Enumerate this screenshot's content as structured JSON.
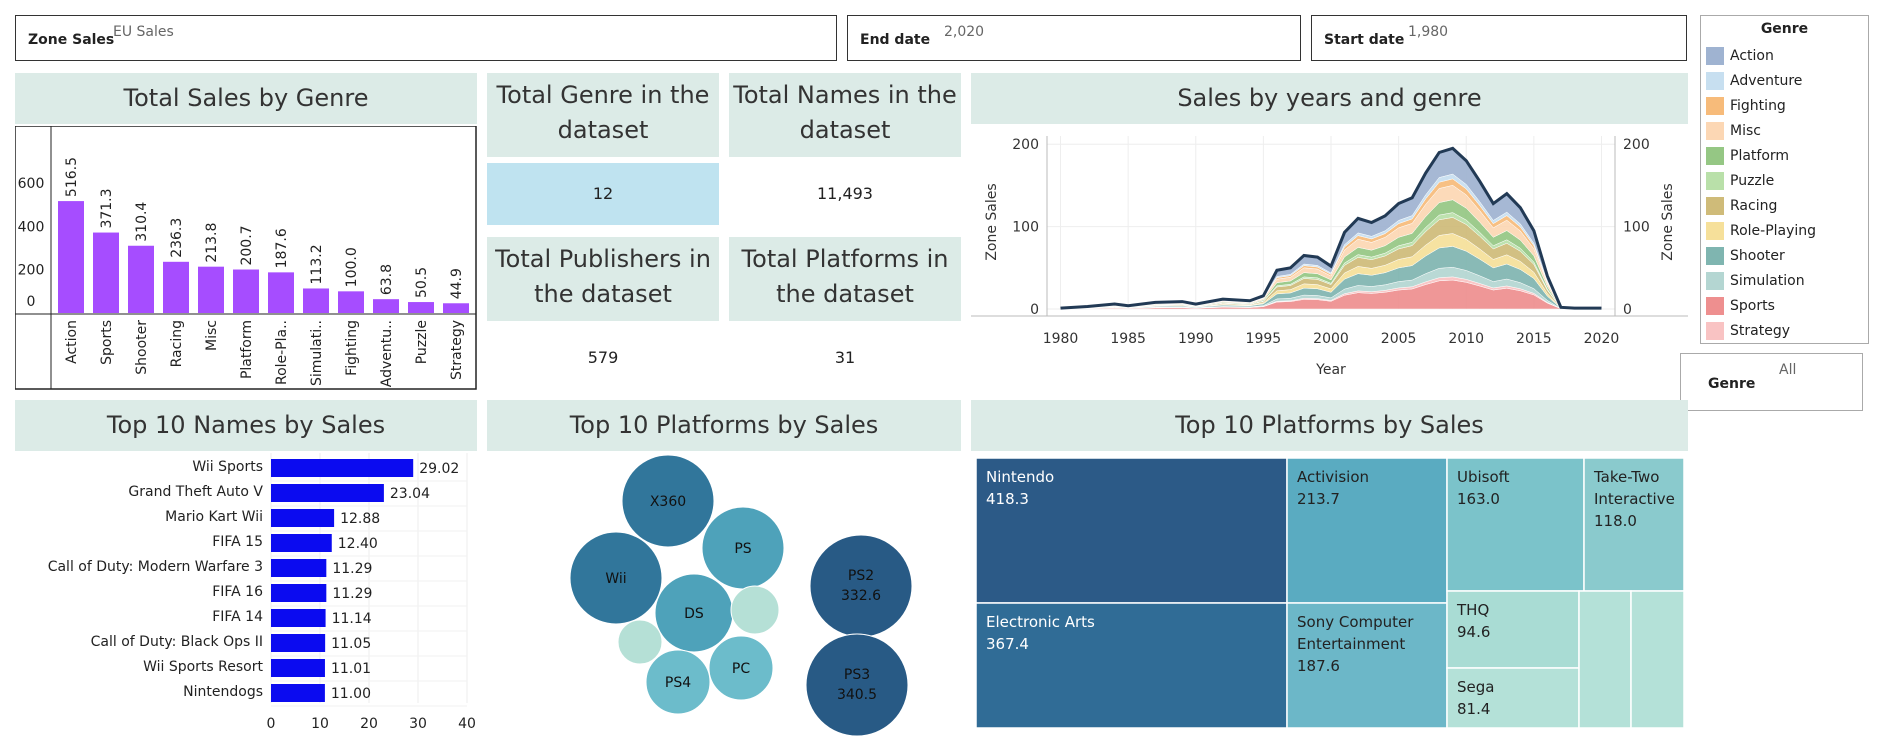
{
  "filters": {
    "zone": {
      "label": "Zone Sales",
      "value": "EU Sales"
    },
    "end": {
      "label": "End date",
      "value": "2,020"
    },
    "start": {
      "label": "Start date",
      "value": "1,980"
    },
    "genre": {
      "label": "Genre",
      "value": "All"
    }
  },
  "kpis": {
    "genre_title": "Total Genre in the dataset",
    "genre_value": "12",
    "names_title": "Total Names in the dataset",
    "names_value": "11,493",
    "publishers_title": "Total Publishers in the dataset",
    "publishers_value": "579",
    "platforms_title": "Total Platforms in the dataset",
    "platforms_value": "31"
  },
  "titles": {
    "genre_chart": "Total Sales by Genre",
    "area_chart": "Sales by years and genre",
    "names_chart": "Top 10 Names by Sales",
    "platform_bubbles": "Top 10 Platforms by Sales",
    "publisher_treemap": "Top 10 Platforms by Sales"
  },
  "legend": {
    "title": "Genre",
    "items": [
      {
        "name": "Action",
        "color": "#9fb3d1"
      },
      {
        "name": "Adventure",
        "color": "#c7dff0"
      },
      {
        "name": "Fighting",
        "color": "#f7bb7a"
      },
      {
        "name": "Misc",
        "color": "#fcd7b4"
      },
      {
        "name": "Platform",
        "color": "#95c784"
      },
      {
        "name": "Puzzle",
        "color": "#b9e0a9"
      },
      {
        "name": "Racing",
        "color": "#cfbb79"
      },
      {
        "name": "Role-Playing",
        "color": "#f6e09a"
      },
      {
        "name": "Shooter",
        "color": "#7fb5b0"
      },
      {
        "name": "Simulation",
        "color": "#b4d6d2"
      },
      {
        "name": "Sports",
        "color": "#ee8f8f"
      },
      {
        "name": "Strategy",
        "color": "#f9c3c3"
      }
    ]
  },
  "chart_data": [
    {
      "type": "bar",
      "title": "Total Sales by Genre",
      "categories": [
        "Action",
        "Sports",
        "Shooter",
        "Racing",
        "Misc",
        "Platform",
        "Role-Pla..",
        "Simulati..",
        "Fighting",
        "Adventu..",
        "Puzzle",
        "Strategy"
      ],
      "values": [
        516.5,
        371.3,
        310.4,
        236.3,
        213.8,
        200.7,
        187.6,
        113.2,
        100.0,
        63.8,
        50.5,
        44.9
      ],
      "value_labels": [
        "516.5",
        "371.3",
        "310.4",
        "236.3",
        "213.8",
        "200.7",
        "187.6",
        "113.2",
        "100.0",
        "63.8",
        "50.5",
        "44.9"
      ],
      "yticks": [
        "0",
        "200",
        "400",
        "600"
      ],
      "ylim": [
        0,
        700
      ],
      "color": "#a64dff"
    },
    {
      "type": "area",
      "title": "Sales by years and genre",
      "xlabel": "Year",
      "ylabel": "Zone Sales",
      "ylim": [
        0,
        210
      ],
      "xlim": [
        1979,
        2021
      ],
      "xticks": [
        "1980",
        "1985",
        "1990",
        "1995",
        "2000",
        "2005",
        "2010",
        "2015",
        "2020"
      ],
      "yticks": [
        "0",
        "100",
        "200"
      ],
      "x": [
        1980,
        1982,
        1984,
        1985,
        1987,
        1989,
        1990,
        1992,
        1994,
        1995,
        1996,
        1997,
        1998,
        1999,
        2000,
        2001,
        2002,
        2003,
        2004,
        2005,
        2006,
        2007,
        2008,
        2009,
        2010,
        2011,
        2012,
        2013,
        2014,
        2015,
        2016,
        2017,
        2018,
        2019,
        2020
      ],
      "total": [
        1,
        3,
        6,
        4,
        8,
        9,
        6,
        12,
        10,
        16,
        47,
        50,
        65,
        63,
        52,
        93,
        110,
        105,
        113,
        128,
        135,
        165,
        190,
        195,
        180,
        155,
        128,
        140,
        123,
        95,
        40,
        2,
        1,
        1,
        1
      ],
      "series": [
        {
          "name": "Sports",
          "share": 0.18
        },
        {
          "name": "Strategy",
          "share": 0.02
        },
        {
          "name": "Simulation",
          "share": 0.06
        },
        {
          "name": "Shooter",
          "share": 0.13
        },
        {
          "name": "Role-Playing",
          "share": 0.08
        },
        {
          "name": "Racing",
          "share": 0.1
        },
        {
          "name": "Puzzle",
          "share": 0.03
        },
        {
          "name": "Platform",
          "share": 0.08
        },
        {
          "name": "Misc",
          "share": 0.09
        },
        {
          "name": "Fighting",
          "share": 0.04
        },
        {
          "name": "Adventure",
          "share": 0.03
        },
        {
          "name": "Action",
          "share": 0.16
        }
      ]
    },
    {
      "type": "bar",
      "title": "Top 10 Names by Sales",
      "orientation": "horizontal",
      "categories": [
        "Wii Sports",
        "Grand Theft Auto V",
        "Mario Kart Wii",
        "FIFA 15",
        "Call of Duty: Modern Warfare 3",
        "FIFA 16",
        "FIFA 14",
        "Call of Duty: Black Ops II",
        "Wii Sports Resort",
        "Nintendogs"
      ],
      "values": [
        29.02,
        23.04,
        12.88,
        12.4,
        11.29,
        11.29,
        11.14,
        11.05,
        11.01,
        11.0
      ],
      "value_labels": [
        "29.02",
        "23.04",
        "12.88",
        "12.40",
        "11.29",
        "11.29",
        "11.14",
        "11.05",
        "11.01",
        "11.00"
      ],
      "xticks": [
        "0",
        "10",
        "20",
        "30",
        "40"
      ],
      "xlim": [
        0,
        40
      ],
      "color": "#0b0bf0"
    },
    {
      "type": "bubble",
      "title": "Top 10 Platforms by Sales",
      "bubbles": [
        {
          "label": "X360",
          "value": "",
          "color": "#31769b"
        },
        {
          "label": "PS",
          "value": "",
          "color": "#4ea2ba"
        },
        {
          "label": "Wii",
          "value": "",
          "color": "#31769b"
        },
        {
          "label": "PS2",
          "value": "332.6",
          "color": "#285a85"
        },
        {
          "label": "DS",
          "value": "",
          "color": "#4ea2ba"
        },
        {
          "label": "",
          "value": "",
          "color": "#b5e0d6"
        },
        {
          "label": "",
          "value": "",
          "color": "#b5e0d6"
        },
        {
          "label": "PC",
          "value": "",
          "color": "#6cbccb"
        },
        {
          "label": "PS4",
          "value": "",
          "color": "#6cbccb"
        },
        {
          "label": "PS3",
          "value": "340.5",
          "color": "#285a85"
        }
      ]
    },
    {
      "type": "treemap",
      "title": "Top 10 Platforms by Sales",
      "tiles": [
        {
          "name": "Nintendo",
          "value": "418.3",
          "color": "#2c5a87"
        },
        {
          "name": "Electronic Arts",
          "value": "367.4",
          "color": "#306c96"
        },
        {
          "name": "Activision",
          "value": "213.7",
          "color": "#5aabc1"
        },
        {
          "name": "Sony Computer Entertainment",
          "value": "187.6",
          "color": "#6cb7c8"
        },
        {
          "name": "Ubisoft",
          "value": "163.0",
          "color": "#7bc3ca"
        },
        {
          "name": "Take-Two Interactive",
          "value": "118.0",
          "color": "#8acacd"
        },
        {
          "name": "THQ",
          "value": "94.6",
          "color": "#a9dcd4"
        },
        {
          "name": "Sega",
          "value": "81.4",
          "color": "#b4e1d8"
        },
        {
          "name": "",
          "value": "",
          "color": "#b4e1d8"
        },
        {
          "name": "",
          "value": "",
          "color": "#b4e1d8"
        }
      ]
    }
  ]
}
